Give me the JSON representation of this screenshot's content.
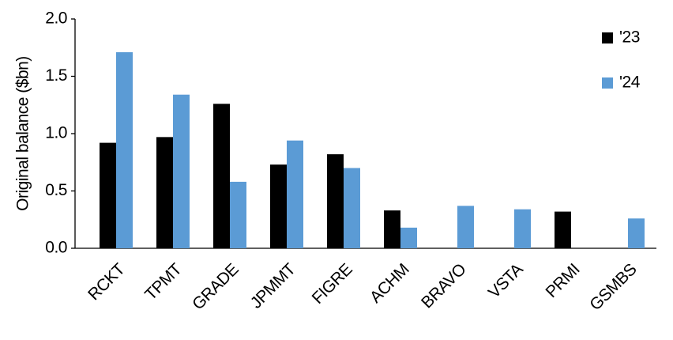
{
  "chart_data": {
    "type": "bar",
    "y_label": "Original balance ($bn)",
    "categories": [
      "RCKT",
      "TPMT",
      "GRADE",
      "JPMMT",
      "FIGRE",
      "ACHM",
      "BRAVO",
      "VSTA",
      "PRMI",
      "GSMBS"
    ],
    "series": [
      {
        "name": "'23",
        "color": "#000000",
        "values": [
          0.92,
          0.97,
          1.26,
          0.73,
          0.82,
          0.33,
          null,
          null,
          0.32,
          null
        ]
      },
      {
        "name": "'24",
        "color": "#5b9bd5",
        "values": [
          1.71,
          1.34,
          0.58,
          0.94,
          0.7,
          0.18,
          0.37,
          0.34,
          null,
          0.26
        ]
      }
    ],
    "ylim": [
      0,
      2
    ],
    "yticks": [
      {
        "value": 0,
        "label": "0.0"
      },
      0.5,
      {
        "value": 1,
        "label": "1.0"
      },
      1.5,
      {
        "value": 2,
        "label": "2.0"
      }
    ],
    "legend": "top-right"
  }
}
